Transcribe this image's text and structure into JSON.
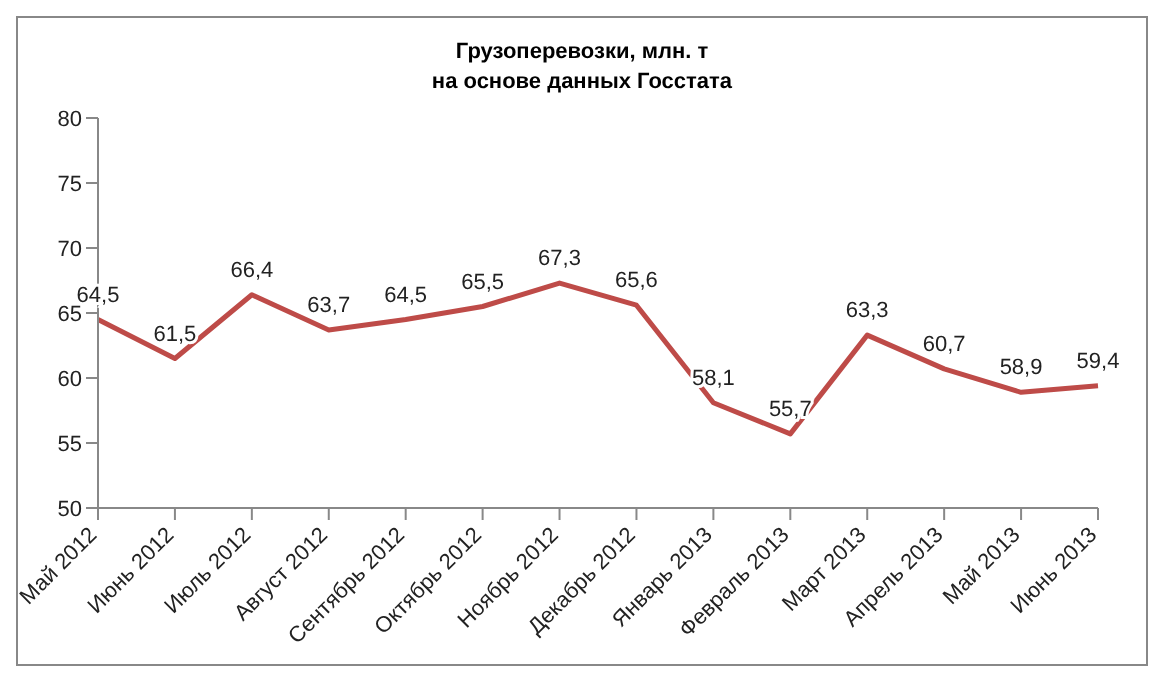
{
  "chart_data": {
    "type": "line",
    "title": "Грузоперевозки, млн. т",
    "subtitle": "на основе данных Госстата",
    "categories": [
      "Май 2012",
      "Июнь 2012",
      "Июль 2012",
      "Август 2012",
      "Сентябрь 2012",
      "Октябрь 2012",
      "Ноябрь 2012",
      "Декабрь 2012",
      "Январь 2013",
      "Февраль 2013",
      "Март 2013",
      "Апрель 2013",
      "Май 2013",
      "Июнь 2013"
    ],
    "series": [
      {
        "color": "#be4b48",
        "values": [
          64.5,
          61.5,
          66.4,
          63.7,
          64.5,
          65.5,
          67.3,
          65.6,
          58.1,
          55.7,
          63.3,
          60.7,
          58.9,
          59.4
        ],
        "value_labels": [
          "64,5",
          "61,5",
          "66,4",
          "63,7",
          "64,5",
          "65,5",
          "67,3",
          "65,6",
          "58,1",
          "55,7",
          "63,3",
          "60,7",
          "58,9",
          "59,4"
        ]
      }
    ],
    "ylim": [
      50,
      80
    ],
    "yticks": [
      50,
      55,
      60,
      65,
      70,
      75,
      80
    ],
    "grid": false,
    "legend": false,
    "marker": "none",
    "line_style": "solid"
  }
}
